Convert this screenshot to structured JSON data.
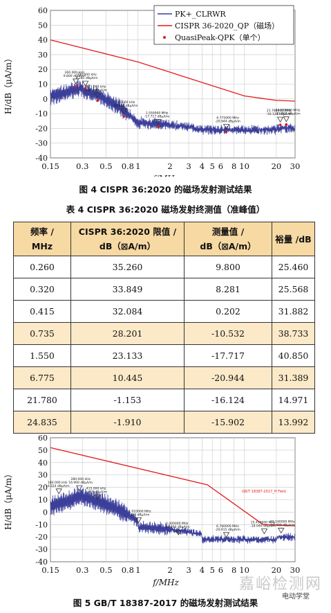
{
  "figure4": {
    "caption": "图 4  CISPR 36:2020 的磁场发射测试结果",
    "chart_data": {
      "type": "line",
      "xscale": "log",
      "xlim": [
        0.15,
        30
      ],
      "ylim": [
        -40,
        60
      ],
      "xticks": [
        0.15,
        0.3,
        0.5,
        0.8,
        1,
        2,
        3,
        4,
        5,
        6,
        8,
        10,
        20,
        30
      ],
      "xtick_labels": [
        "0.15",
        "0.3",
        "0.5",
        "0.8",
        "1",
        "2",
        "3",
        "4",
        "5",
        "6",
        "8",
        "10",
        "20",
        "30"
      ],
      "yticks": [
        -40,
        -30,
        -20,
        -10,
        0,
        10,
        20,
        30,
        40,
        50,
        60
      ],
      "xlabel": "f/MHz",
      "ylabel": "H/dB（μA/m）",
      "legend": [
        "PK+_CLRWR",
        "CISPR 36-2020_QP（磁场）",
        "QuasiPeak-QPK（单个）"
      ],
      "legend_position": "top-right",
      "limit_line": {
        "x": [
          0.15,
          1,
          10,
          20,
          30
        ],
        "y": [
          40,
          25,
          2,
          -1,
          -1.5
        ]
      },
      "qp_points": {
        "x": [
          0.26,
          0.32,
          0.415,
          0.735,
          1.55,
          6.775,
          21.78,
          24.835
        ],
        "y": [
          9.8,
          8.281,
          0.202,
          -10.532,
          -17.717,
          -20.944,
          -16.124,
          -15.902
        ]
      },
      "peak_annotations": [
        "260.000 kHz 9.800 dBμA/m",
        "320.000 kHz 8.281 dBμA/m",
        "415.000 kHz 0.202 dBμA/m",
        "735.000 kHz -10.532 dBμA/m",
        "1.550000 MHz -17.717 dBμA/m",
        "6.775000 MHz -20.944 dBμA/m",
        "21.780000 MHz -16.124 dBμA/m",
        "24.835000 MHz -15.902 dBμA/m"
      ]
    }
  },
  "table4": {
    "title": "表 4   CISPR 36:2020 磁场发射终测值（准峰值）",
    "headers": [
      {
        "l1": "频率 /",
        "l2": "MHz"
      },
      {
        "l1": "CISPR 36:2020 限值 /",
        "l2": "dB（⊠A/m）"
      },
      {
        "l1": "测量值 /",
        "l2": "dB（⊠A/m）"
      },
      {
        "l1": "裕量 /dB",
        "l2": ""
      }
    ],
    "rows": [
      {
        "f": "0.260",
        "limit": "35.260",
        "meas": "9.800",
        "margin": "25.460"
      },
      {
        "f": "0.320",
        "limit": "33.849",
        "meas": "8.281",
        "margin": "25.568"
      },
      {
        "f": "0.415",
        "limit": "32.084",
        "meas": "0.202",
        "margin": "31.882"
      },
      {
        "f": "0.735",
        "limit": "28.201",
        "meas": "-10.532",
        "margin": "38.733"
      },
      {
        "f": "1.550",
        "limit": "23.133",
        "meas": "-17.717",
        "margin": "40.850"
      },
      {
        "f": "6.775",
        "limit": "10.445",
        "meas": "-20.944",
        "margin": "31.389"
      },
      {
        "f": "21.780",
        "limit": "-1.153",
        "meas": "-16.124",
        "margin": "14.971"
      },
      {
        "f": "24.835",
        "limit": "-1.910",
        "meas": "-15.902",
        "margin": "13.992"
      }
    ]
  },
  "figure5": {
    "caption": "图 5   GB/T 18387-2017 的磁场发射测试结果",
    "chart_data": {
      "type": "line",
      "xscale": "log",
      "xlim": [
        0.15,
        30
      ],
      "ylim": [
        -40,
        60
      ],
      "xticks": [
        0.15,
        0.3,
        0.5,
        0.8,
        1,
        2,
        3,
        4,
        5,
        6,
        8,
        10,
        20,
        30
      ],
      "xtick_labels": [
        "0.15",
        "0.3",
        "0.5",
        "0.8",
        "1",
        "2",
        "3",
        "4",
        "5",
        "6",
        "8",
        "10",
        "20",
        "30"
      ],
      "yticks": [
        -40,
        -30,
        -20,
        -10,
        0,
        10,
        20,
        30,
        40,
        50,
        60
      ],
      "xlabel": "f/MHz",
      "ylabel": "H/dB（μA/m）",
      "limit_label": "GB/T 18387-2017_H Field",
      "limit_line": {
        "x": [
          0.15,
          4.5,
          15,
          30
        ],
        "y": [
          52,
          22,
          -10,
          -11
        ]
      },
      "peak_markers": {
        "x": [
          0.18,
          0.28,
          0.415,
          1.01,
          2.4,
          6.76,
          15.41,
          22.16
        ],
        "y": [
          14.3,
          16.9,
          9.4,
          -9.0,
          -18.9,
          -20.9,
          -18.0,
          -17.4
        ]
      },
      "peak_annotations": [
        "180.000 kHz 14.324 dBμA/m",
        "280.000 kHz 16.900 dBμA/m",
        "415.000 kHz 9.416 dBμA/m",
        "1.010000 MHz -9.0 dBμA/m",
        "2.400000 MHz -18.904 dBμA/m",
        "6.760000 MHz -20.915 dBμA/m",
        "15.410000 MHz -18.040 dBμA/m",
        "22.160000 MHz -17.429 dBμA/m"
      ]
    }
  },
  "watermark": {
    "text": "嘉峪检测网",
    "sub": "电动学堂"
  },
  "colors": {
    "trace": "#3b3f9a",
    "limit": "#e41a1a",
    "header": "#f7d9a3",
    "shade": "#fbe9c8"
  }
}
